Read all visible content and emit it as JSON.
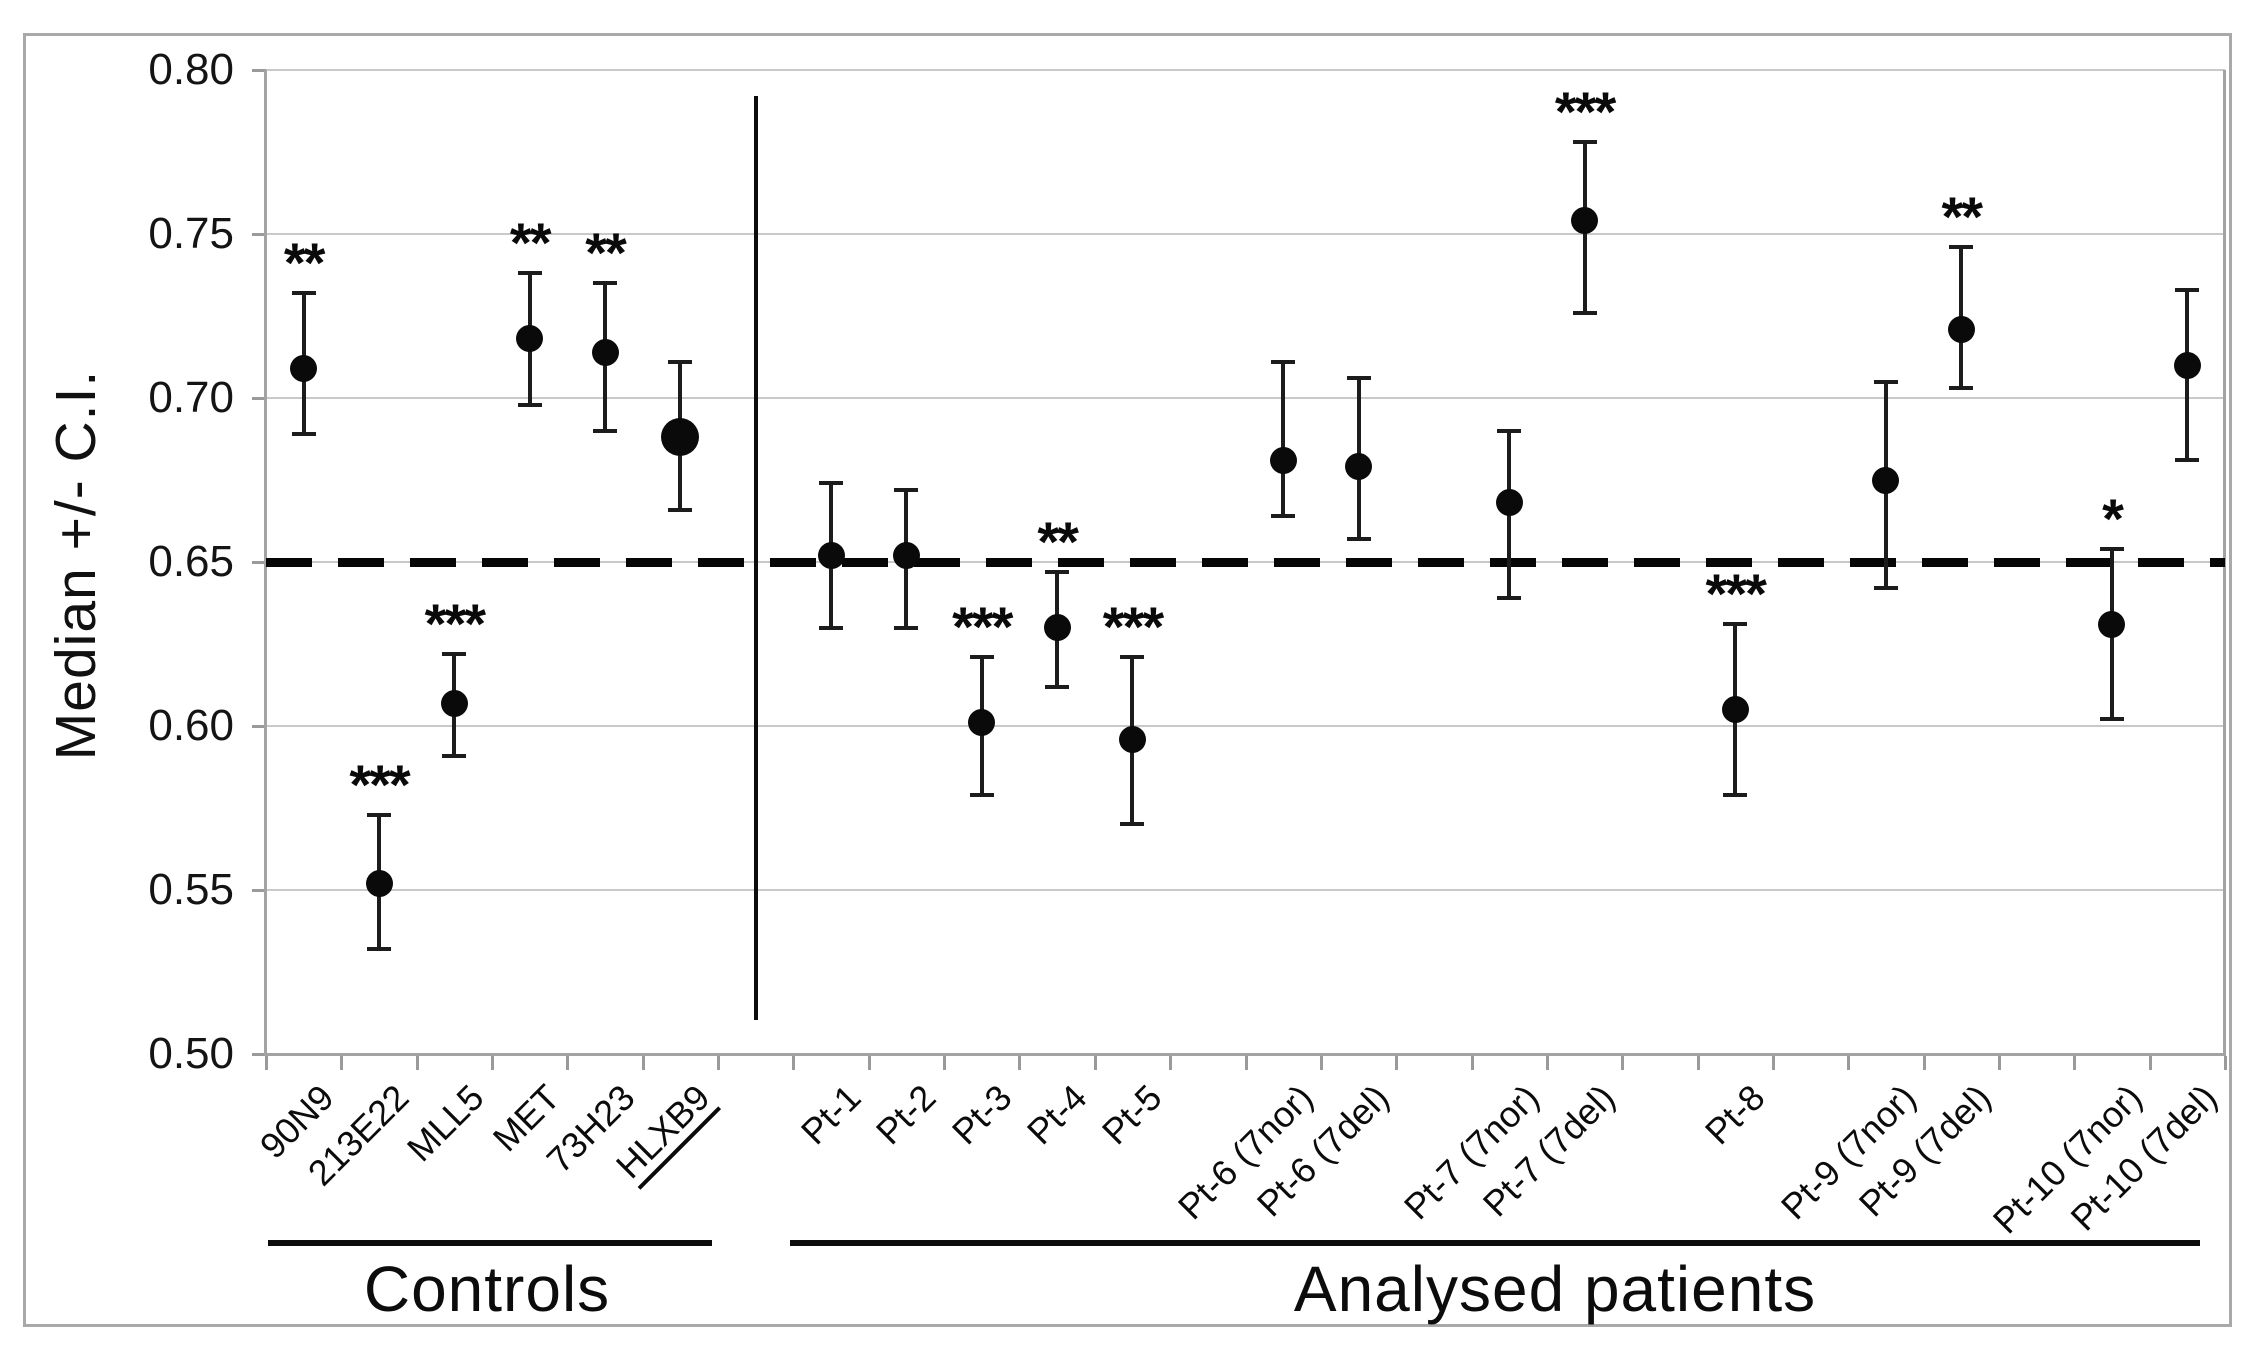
{
  "chart_data": {
    "type": "scatter",
    "ylabel": "Median  +/- C.I.",
    "ylim": [
      0.5,
      0.8
    ],
    "yticks": [
      0.8,
      0.75,
      0.7,
      0.65,
      0.6,
      0.55,
      0.5
    ],
    "grid": "horizontal",
    "n_category_slots": 26,
    "reference_line": {
      "value": 0.65,
      "style": "dashed"
    },
    "group_separator_slot": 6,
    "groups": [
      {
        "label": "Controls",
        "points": [
          {
            "label": "90N9",
            "slot": 0,
            "value": 0.709,
            "ci_low": 0.689,
            "ci_high": 0.732,
            "sig": "**",
            "marker": "normal",
            "label_underline": false
          },
          {
            "label": "213E22",
            "slot": 1,
            "value": 0.552,
            "ci_low": 0.532,
            "ci_high": 0.573,
            "sig": "***",
            "marker": "normal",
            "label_underline": false
          },
          {
            "label": "MLL5",
            "slot": 2,
            "value": 0.607,
            "ci_low": 0.591,
            "ci_high": 0.622,
            "sig": "***",
            "marker": "normal",
            "label_underline": false
          },
          {
            "label": "MET",
            "slot": 3,
            "value": 0.718,
            "ci_low": 0.698,
            "ci_high": 0.738,
            "sig": "**",
            "marker": "normal",
            "label_underline": false
          },
          {
            "label": "73H23",
            "slot": 4,
            "value": 0.714,
            "ci_low": 0.69,
            "ci_high": 0.735,
            "sig": "**",
            "marker": "normal",
            "label_underline": false
          },
          {
            "label": "HLXB9",
            "slot": 5,
            "value": 0.688,
            "ci_low": 0.666,
            "ci_high": 0.711,
            "sig": "",
            "marker": "large",
            "label_underline": true
          }
        ]
      },
      {
        "label": "Analysed patients",
        "points": [
          {
            "label": "Pt-1",
            "slot": 7,
            "value": 0.652,
            "ci_low": 0.63,
            "ci_high": 0.674,
            "sig": "",
            "marker": "normal",
            "label_underline": false
          },
          {
            "label": "Pt-2",
            "slot": 8,
            "value": 0.652,
            "ci_low": 0.63,
            "ci_high": 0.672,
            "sig": "",
            "marker": "normal",
            "label_underline": false
          },
          {
            "label": "Pt-3",
            "slot": 9,
            "value": 0.601,
            "ci_low": 0.579,
            "ci_high": 0.621,
            "sig": "***",
            "marker": "normal",
            "label_underline": false
          },
          {
            "label": "Pt-4",
            "slot": 10,
            "value": 0.63,
            "ci_low": 0.612,
            "ci_high": 0.647,
            "sig": "**",
            "marker": "normal",
            "label_underline": false
          },
          {
            "label": "Pt-5",
            "slot": 11,
            "value": 0.596,
            "ci_low": 0.57,
            "ci_high": 0.621,
            "sig": "***",
            "marker": "normal",
            "label_underline": false
          },
          {
            "label": "Pt-6 (7nor)",
            "slot": 13,
            "value": 0.681,
            "ci_low": 0.664,
            "ci_high": 0.711,
            "sig": "",
            "marker": "normal",
            "label_underline": false
          },
          {
            "label": "Pt-6 (7del)",
            "slot": 14,
            "value": 0.679,
            "ci_low": 0.657,
            "ci_high": 0.706,
            "sig": "",
            "marker": "normal",
            "label_underline": false
          },
          {
            "label": "Pt-7 (7nor)",
            "slot": 16,
            "value": 0.668,
            "ci_low": 0.639,
            "ci_high": 0.69,
            "sig": "",
            "marker": "normal",
            "label_underline": false
          },
          {
            "label": "Pt-7 (7del)",
            "slot": 17,
            "value": 0.754,
            "ci_low": 0.726,
            "ci_high": 0.778,
            "sig": "***",
            "marker": "normal",
            "label_underline": false
          },
          {
            "label": "Pt-8",
            "slot": 19,
            "value": 0.605,
            "ci_low": 0.579,
            "ci_high": 0.631,
            "sig": "***",
            "marker": "normal",
            "label_underline": false
          },
          {
            "label": "Pt-9 (7nor)",
            "slot": 21,
            "value": 0.675,
            "ci_low": 0.642,
            "ci_high": 0.705,
            "sig": "",
            "marker": "normal",
            "label_underline": false
          },
          {
            "label": "Pt-9 (7del)",
            "slot": 22,
            "value": 0.721,
            "ci_low": 0.703,
            "ci_high": 0.746,
            "sig": "**",
            "marker": "normal",
            "label_underline": false
          },
          {
            "label": "Pt-10 (7nor)",
            "slot": 24,
            "value": 0.631,
            "ci_low": 0.602,
            "ci_high": 0.654,
            "sig": "*",
            "marker": "normal",
            "label_underline": false
          },
          {
            "label": "Pt-10 (7del)",
            "slot": 25,
            "value": 0.71,
            "ci_low": 0.681,
            "ci_high": 0.733,
            "sig": "",
            "marker": "normal",
            "label_underline": false
          }
        ]
      }
    ]
  }
}
